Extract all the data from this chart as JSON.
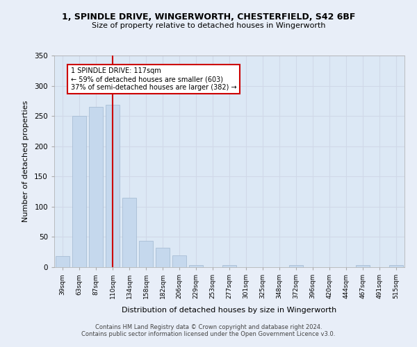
{
  "title_line1": "1, SPINDLE DRIVE, WINGERWORTH, CHESTERFIELD, S42 6BF",
  "title_line2": "Size of property relative to detached houses in Wingerworth",
  "xlabel": "Distribution of detached houses by size in Wingerworth",
  "ylabel": "Number of detached properties",
  "categories": [
    "39sqm",
    "63sqm",
    "87sqm",
    "110sqm",
    "134sqm",
    "158sqm",
    "182sqm",
    "206sqm",
    "229sqm",
    "253sqm",
    "277sqm",
    "301sqm",
    "325sqm",
    "348sqm",
    "372sqm",
    "396sqm",
    "420sqm",
    "444sqm",
    "467sqm",
    "491sqm",
    "515sqm"
  ],
  "values": [
    18,
    250,
    265,
    268,
    115,
    44,
    32,
    20,
    4,
    0,
    3,
    0,
    0,
    0,
    4,
    0,
    0,
    0,
    3,
    0,
    3
  ],
  "bar_color": "#c5d8ed",
  "bar_edge_color": "#a0b8d0",
  "annotation_text_line1": "1 SPINDLE DRIVE: 117sqm",
  "annotation_text_line2": "← 59% of detached houses are smaller (603)",
  "annotation_text_line3": "37% of semi-detached houses are larger (382) →",
  "annotation_box_color": "#ffffff",
  "annotation_box_edge_color": "#cc0000",
  "vline_color": "#cc0000",
  "vline_x": 3.0,
  "ylim": [
    0,
    350
  ],
  "yticks": [
    0,
    50,
    100,
    150,
    200,
    250,
    300,
    350
  ],
  "grid_color": "#d0d8e8",
  "background_color": "#dce8f5",
  "fig_background_color": "#e8eef8",
  "footer_line1": "Contains HM Land Registry data © Crown copyright and database right 2024.",
  "footer_line2": "Contains public sector information licensed under the Open Government Licence v3.0."
}
